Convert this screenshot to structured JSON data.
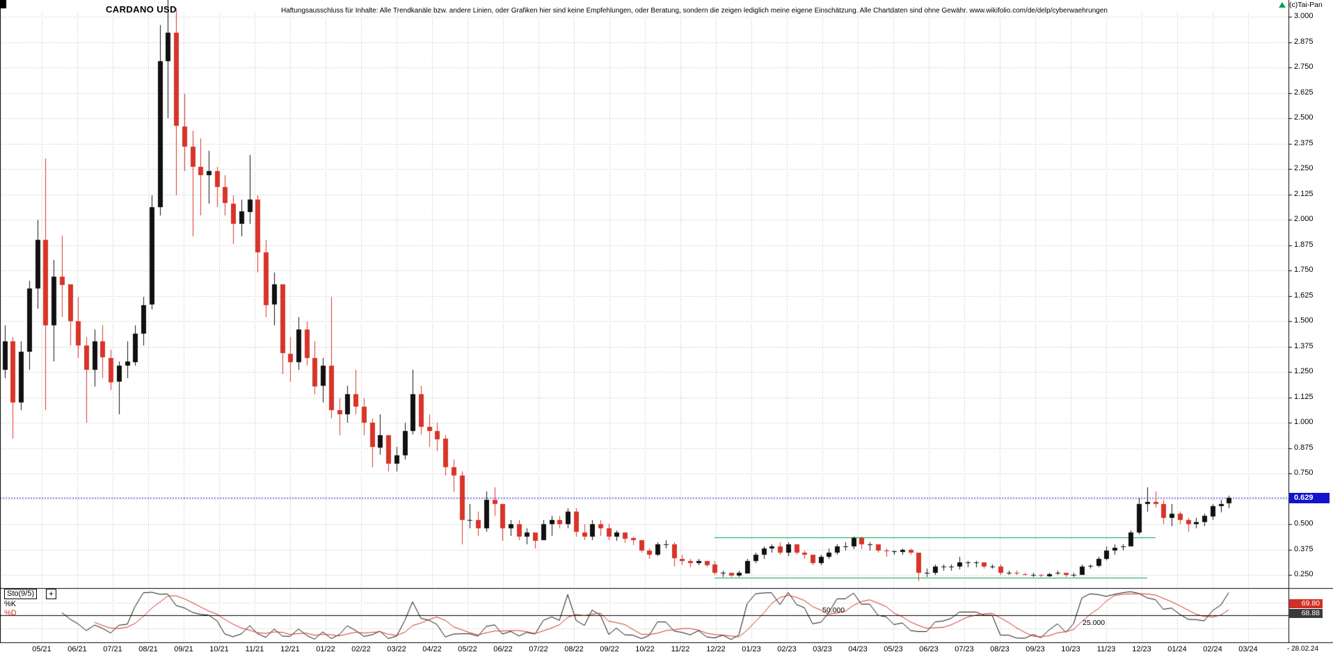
{
  "header": {
    "title": "CARDANO USD",
    "disclaimer": "Haftungsausschluss für Inhalte: Alle Trendkanäle bzw. andere Linien, oder Grafiken hier sind keine Empfehlungen, oder Beratung, sondern die zeigen lediglich meine eigene Einschätzung. Alle Chartdaten sind ohne Gewähr.  www.wikifolio.com/de/delp/cyberwaehrungen",
    "copyright": "(c)Tai-Pan"
  },
  "price_axis": {
    "current_price_label": "0.629",
    "labels": [
      {
        "text": "3.000",
        "value": 3.0
      },
      {
        "text": "2.875",
        "value": 2.875
      },
      {
        "text": "2.750",
        "value": 2.75
      },
      {
        "text": "2.625",
        "value": 2.625
      },
      {
        "text": "2.500",
        "value": 2.5
      },
      {
        "text": "2.375",
        "value": 2.375
      },
      {
        "text": "2.250",
        "value": 2.25
      },
      {
        "text": "2.125",
        "value": 2.125
      },
      {
        "text": "2.000",
        "value": 2.0
      },
      {
        "text": "1.875",
        "value": 1.875
      },
      {
        "text": "1.750",
        "value": 1.75
      },
      {
        "text": "1.625",
        "value": 1.625
      },
      {
        "text": "1.500",
        "value": 1.5
      },
      {
        "text": "1.375",
        "value": 1.375
      },
      {
        "text": "1.250",
        "value": 1.25
      },
      {
        "text": "1.125",
        "value": 1.125
      },
      {
        "text": "1.000",
        "value": 1.0
      },
      {
        "text": "0.875",
        "value": 0.875
      },
      {
        "text": "0.750",
        "value": 0.75
      },
      {
        "text": "0.500",
        "value": 0.5
      },
      {
        "text": "0.375",
        "value": 0.375
      },
      {
        "text": "0.250",
        "value": 0.25
      }
    ]
  },
  "x_axis": {
    "labels": [
      "05/21",
      "06/21",
      "07/21",
      "08/21",
      "09/21",
      "10/21",
      "11/21",
      "12/21",
      "01/22",
      "02/22",
      "03/22",
      "04/22",
      "05/22",
      "06/22",
      "07/22",
      "08/22",
      "09/22",
      "10/22",
      "11/22",
      "12/22",
      "01/23",
      "02/23",
      "03/23",
      "04/23",
      "05/23",
      "06/23",
      "07/23",
      "08/23",
      "09/23",
      "10/23",
      "11/23",
      "12/23",
      "01/24",
      "02/24",
      "03/24"
    ],
    "end_date_label": "- 28.02.24"
  },
  "sto_panel": {
    "indicator_label": "Sto(9/5)",
    "plus_label": "+",
    "k_label": "%K",
    "d_label": "%D",
    "k_value": "69.80",
    "d_value": "68.88",
    "level50_label": "50.000",
    "level25_label": "25.000"
  },
  "chart_data": {
    "type": "candlestick",
    "symbol": "CARDANO USD",
    "interval": "weekly",
    "start_date": "2021-04-05",
    "end_date": "2024-02-26",
    "ylim": [
      0.22,
      3.1
    ],
    "price_grid": {
      "min": 0.25,
      "max": 3.0,
      "step": 0.125
    },
    "current_price": 0.629,
    "first_open": 1.18,
    "weeks_hlc": [
      [
        1.38,
        1.12,
        1.26
      ],
      [
        1.48,
        1.22,
        1.4
      ],
      [
        1.42,
        0.92,
        1.1
      ],
      [
        1.4,
        1.06,
        1.35
      ],
      [
        1.7,
        1.26,
        1.66
      ],
      [
        2.0,
        1.56,
        1.9
      ],
      [
        2.3,
        1.06,
        1.48
      ],
      [
        1.8,
        1.3,
        1.72
      ],
      [
        1.92,
        1.52,
        1.68
      ],
      [
        1.66,
        1.38,
        1.5
      ],
      [
        1.62,
        1.32,
        1.38
      ],
      [
        1.42,
        1.0,
        1.26
      ],
      [
        1.46,
        1.18,
        1.4
      ],
      [
        1.48,
        1.22,
        1.32
      ],
      [
        1.36,
        1.16,
        1.2
      ],
      [
        1.3,
        1.04,
        1.28
      ],
      [
        1.4,
        1.22,
        1.3
      ],
      [
        1.48,
        1.28,
        1.44
      ],
      [
        1.62,
        1.38,
        1.58
      ],
      [
        2.12,
        1.56,
        2.06
      ],
      [
        2.96,
        2.02,
        2.78
      ],
      [
        3.1,
        2.5,
        2.92
      ],
      [
        3.04,
        2.12,
        2.46
      ],
      [
        2.62,
        2.24,
        2.36
      ],
      [
        2.44,
        1.92,
        2.26
      ],
      [
        2.4,
        2.02,
        2.22
      ],
      [
        2.34,
        2.08,
        2.24
      ],
      [
        2.26,
        2.06,
        2.16
      ],
      [
        2.22,
        2.02,
        2.08
      ],
      [
        2.12,
        1.88,
        1.98
      ],
      [
        2.1,
        1.92,
        2.04
      ],
      [
        2.32,
        1.98,
        2.1
      ],
      [
        2.12,
        1.74,
        1.84
      ],
      [
        1.9,
        1.52,
        1.58
      ],
      [
        1.74,
        1.48,
        1.68
      ],
      [
        1.58,
        1.24,
        1.34
      ],
      [
        1.42,
        1.2,
        1.3
      ],
      [
        1.52,
        1.26,
        1.46
      ],
      [
        1.5,
        1.28,
        1.32
      ],
      [
        1.4,
        1.14,
        1.18
      ],
      [
        1.32,
        1.1,
        1.28
      ],
      [
        1.62,
        1.02,
        1.06
      ],
      [
        1.12,
        0.94,
        1.04
      ],
      [
        1.18,
        1.0,
        1.14
      ],
      [
        1.26,
        1.04,
        1.08
      ],
      [
        1.12,
        0.94,
        1.0
      ],
      [
        1.02,
        0.78,
        0.88
      ],
      [
        1.04,
        0.84,
        0.94
      ],
      [
        0.92,
        0.76,
        0.8
      ],
      [
        0.88,
        0.76,
        0.84
      ],
      [
        1.0,
        0.82,
        0.96
      ],
      [
        1.26,
        0.94,
        1.14
      ],
      [
        1.18,
        0.94,
        0.98
      ],
      [
        1.04,
        0.88,
        0.96
      ],
      [
        1.0,
        0.86,
        0.92
      ],
      [
        0.94,
        0.74,
        0.78
      ],
      [
        0.82,
        0.66,
        0.74
      ],
      [
        0.76,
        0.4,
        0.52
      ],
      [
        0.6,
        0.48,
        0.52
      ],
      [
        0.56,
        0.44,
        0.48
      ],
      [
        0.66,
        0.46,
        0.62
      ],
      [
        0.68,
        0.54,
        0.6
      ],
      [
        0.58,
        0.42,
        0.48
      ],
      [
        0.52,
        0.44,
        0.5
      ],
      [
        0.52,
        0.42,
        0.44
      ],
      [
        0.48,
        0.4,
        0.46
      ],
      [
        0.46,
        0.38,
        0.42
      ],
      [
        0.52,
        0.42,
        0.5
      ],
      [
        0.54,
        0.44,
        0.52
      ],
      [
        0.54,
        0.48,
        0.5
      ],
      [
        0.58,
        0.48,
        0.56
      ],
      [
        0.58,
        0.44,
        0.46
      ],
      [
        0.5,
        0.42,
        0.44
      ],
      [
        0.52,
        0.42,
        0.5
      ],
      [
        0.52,
        0.44,
        0.48
      ],
      [
        0.5,
        0.42,
        0.44
      ],
      [
        0.47,
        0.42,
        0.46
      ],
      [
        0.46,
        0.41,
        0.43
      ],
      [
        0.44,
        0.4,
        0.42
      ],
      [
        0.42,
        0.36,
        0.37
      ],
      [
        0.38,
        0.33,
        0.35
      ],
      [
        0.41,
        0.34,
        0.4
      ],
      [
        0.42,
        0.38,
        0.4
      ],
      [
        0.41,
        0.29,
        0.33
      ],
      [
        0.35,
        0.3,
        0.32
      ],
      [
        0.33,
        0.29,
        0.31
      ],
      [
        0.33,
        0.3,
        0.32
      ],
      [
        0.32,
        0.29,
        0.3
      ],
      [
        0.32,
        0.25,
        0.26
      ],
      [
        0.27,
        0.24,
        0.26
      ],
      [
        0.26,
        0.24,
        0.245
      ],
      [
        0.27,
        0.24,
        0.26
      ],
      [
        0.33,
        0.26,
        0.32
      ],
      [
        0.36,
        0.31,
        0.35
      ],
      [
        0.39,
        0.33,
        0.38
      ],
      [
        0.4,
        0.36,
        0.39
      ],
      [
        0.41,
        0.35,
        0.36
      ],
      [
        0.41,
        0.34,
        0.4
      ],
      [
        0.4,
        0.35,
        0.36
      ],
      [
        0.37,
        0.33,
        0.35
      ],
      [
        0.35,
        0.3,
        0.31
      ],
      [
        0.35,
        0.3,
        0.34
      ],
      [
        0.38,
        0.33,
        0.36
      ],
      [
        0.4,
        0.35,
        0.39
      ],
      [
        0.41,
        0.37,
        0.39
      ],
      [
        0.44,
        0.38,
        0.43
      ],
      [
        0.44,
        0.38,
        0.4
      ],
      [
        0.41,
        0.37,
        0.4
      ],
      [
        0.4,
        0.36,
        0.37
      ],
      [
        0.38,
        0.34,
        0.365
      ],
      [
        0.37,
        0.35,
        0.365
      ],
      [
        0.38,
        0.35,
        0.375
      ],
      [
        0.38,
        0.35,
        0.36
      ],
      [
        0.36,
        0.22,
        0.26
      ],
      [
        0.28,
        0.24,
        0.26
      ],
      [
        0.3,
        0.25,
        0.29
      ],
      [
        0.3,
        0.27,
        0.29
      ],
      [
        0.3,
        0.27,
        0.29
      ],
      [
        0.34,
        0.28,
        0.31
      ],
      [
        0.32,
        0.29,
        0.31
      ],
      [
        0.32,
        0.29,
        0.31
      ],
      [
        0.31,
        0.28,
        0.29
      ],
      [
        0.3,
        0.28,
        0.29
      ],
      [
        0.3,
        0.25,
        0.26
      ],
      [
        0.27,
        0.25,
        0.26
      ],
      [
        0.27,
        0.25,
        0.255
      ],
      [
        0.26,
        0.245,
        0.25
      ],
      [
        0.26,
        0.24,
        0.25
      ],
      [
        0.255,
        0.24,
        0.245
      ],
      [
        0.26,
        0.24,
        0.255
      ],
      [
        0.27,
        0.25,
        0.26
      ],
      [
        0.26,
        0.24,
        0.25
      ],
      [
        0.26,
        0.24,
        0.25
      ],
      [
        0.3,
        0.25,
        0.29
      ],
      [
        0.3,
        0.28,
        0.295
      ],
      [
        0.34,
        0.29,
        0.33
      ],
      [
        0.39,
        0.32,
        0.37
      ],
      [
        0.4,
        0.35,
        0.385
      ],
      [
        0.4,
        0.37,
        0.39
      ],
      [
        0.47,
        0.39,
        0.46
      ],
      [
        0.63,
        0.45,
        0.6
      ],
      [
        0.68,
        0.56,
        0.61
      ],
      [
        0.66,
        0.58,
        0.6
      ],
      [
        0.62,
        0.5,
        0.53
      ],
      [
        0.6,
        0.49,
        0.55
      ],
      [
        0.56,
        0.5,
        0.52
      ],
      [
        0.53,
        0.46,
        0.5
      ],
      [
        0.53,
        0.48,
        0.51
      ],
      [
        0.55,
        0.49,
        0.54
      ],
      [
        0.6,
        0.52,
        0.59
      ],
      [
        0.62,
        0.56,
        0.6
      ],
      [
        0.64,
        0.58,
        0.629
      ]
    ],
    "horizontal_lines": [
      {
        "role": "current-price",
        "value": 0.629,
        "color": "#1313cf",
        "style": "dotted",
        "from_week": null,
        "to_week": null
      },
      {
        "role": "resistance",
        "value": 0.435,
        "color": "#00a14b",
        "style": "solid",
        "from_week": 88,
        "to_week": 142
      },
      {
        "role": "support",
        "value": 0.235,
        "color": "#00a14b",
        "style": "solid",
        "from_week": 88,
        "to_week": 141
      }
    ],
    "indicator": {
      "name": "Sto(9/5)",
      "k_period": 9,
      "d_period": 5,
      "levels": [
        25,
        50,
        75
      ],
      "last_k": 69.8,
      "last_d": 68.88,
      "k_color": "#111111",
      "d_color": "#d03025"
    },
    "colors": {
      "up": "#111111",
      "down": "#d8352a",
      "grid": "#b9b9b9",
      "frame": "#000000",
      "current_line": "#1313cf",
      "sr_line": "#00a14b"
    }
  }
}
